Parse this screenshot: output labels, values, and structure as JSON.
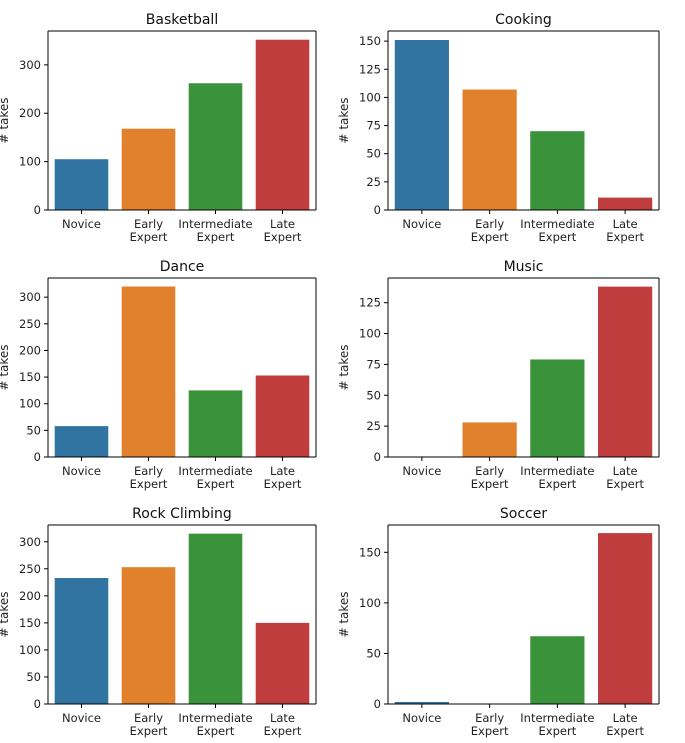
{
  "chart_data": [
    {
      "type": "bar",
      "title": "Basketball",
      "ylabel": "# takes",
      "categories": [
        "Novice",
        "Early\nExpert",
        "Intermediate\nExpert",
        "Late\nExpert"
      ],
      "values": [
        105,
        168,
        262,
        352
      ],
      "ylim": [
        0,
        370
      ],
      "yticks": [
        0,
        100,
        200,
        300
      ]
    },
    {
      "type": "bar",
      "title": "Cooking",
      "ylabel": "# takes",
      "categories": [
        "Novice",
        "Early\nExpert",
        "Intermediate\nExpert",
        "Late\nExpert"
      ],
      "values": [
        151,
        107,
        70,
        11
      ],
      "ylim": [
        0,
        159
      ],
      "yticks": [
        0,
        25,
        50,
        75,
        100,
        125,
        150
      ]
    },
    {
      "type": "bar",
      "title": "Dance",
      "ylabel": "# takes",
      "categories": [
        "Novice",
        "Early\nExpert",
        "Intermediate\nExpert",
        "Late\nExpert"
      ],
      "values": [
        58,
        320,
        125,
        153
      ],
      "ylim": [
        0,
        336
      ],
      "yticks": [
        0,
        50,
        100,
        150,
        200,
        250,
        300
      ]
    },
    {
      "type": "bar",
      "title": "Music",
      "ylabel": "# takes",
      "categories": [
        "Novice",
        "Early\nExpert",
        "Intermediate\nExpert",
        "Late\nExpert"
      ],
      "values": [
        0,
        28,
        79,
        138
      ],
      "ylim": [
        0,
        145
      ],
      "yticks": [
        0,
        25,
        50,
        75,
        100,
        125
      ]
    },
    {
      "type": "bar",
      "title": "Rock Climbing",
      "ylabel": "# takes",
      "categories": [
        "Novice",
        "Early\nExpert",
        "Intermediate\nExpert",
        "Late\nExpert"
      ],
      "values": [
        233,
        253,
        315,
        150
      ],
      "ylim": [
        0,
        331
      ],
      "yticks": [
        0,
        50,
        100,
        150,
        200,
        250,
        300
      ]
    },
    {
      "type": "bar",
      "title": "Soccer",
      "ylabel": "# takes",
      "categories": [
        "Novice",
        "Early\nExpert",
        "Intermediate\nExpert",
        "Late\nExpert"
      ],
      "values": [
        2,
        0,
        67,
        169
      ],
      "ylim": [
        0,
        177
      ],
      "yticks": [
        0,
        50,
        100,
        150
      ]
    }
  ],
  "colors": [
    "#3274a1",
    "#e1812c",
    "#3a923a",
    "#c03d3e"
  ]
}
